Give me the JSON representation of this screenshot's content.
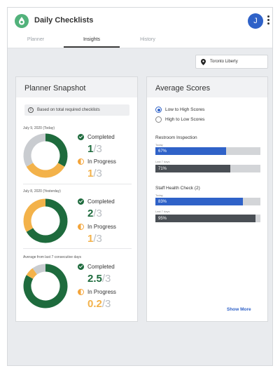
{
  "app": {
    "title": "Daily Checklists",
    "avatar_initial": "J"
  },
  "tabs": [
    {
      "label": "Planner",
      "active": false
    },
    {
      "label": "Insights",
      "active": true
    },
    {
      "label": "History",
      "active": false
    }
  ],
  "location": {
    "label": "Toronto Liberty",
    "icon": "location-pin-icon"
  },
  "planner": {
    "title": "Planner Snapshot",
    "info": "Based on total required checklists",
    "sections": [
      {
        "label": "July 9, 2020 (Today)",
        "completed_label": "Completed",
        "completed": "1",
        "completed_total": "/3",
        "progress_label": "In Progress",
        "progress": "1",
        "progress_total": "/3",
        "chart": {
          "completed": 1,
          "in_progress": 1,
          "total": 3
        }
      },
      {
        "label": "July 8, 2020 (Yesterday)",
        "completed_label": "Completed",
        "completed": "2",
        "completed_total": "/3",
        "progress_label": "In Progress",
        "progress": "1",
        "progress_total": "/3",
        "chart": {
          "completed": 2,
          "in_progress": 1,
          "total": 3
        }
      },
      {
        "label": "Average from last 7 consecutive days",
        "completed_label": "Completed",
        "completed": "2.5",
        "completed_total": "/3",
        "progress_label": "In Progress",
        "progress": "0.2",
        "progress_total": "/3",
        "chart": {
          "completed": 2.5,
          "in_progress": 0.2,
          "total": 3
        }
      }
    ]
  },
  "scores": {
    "title": "Average Scores",
    "sort_options": [
      {
        "label": "Low to High Scores",
        "selected": true
      },
      {
        "label": "High to Low Scores",
        "selected": false
      }
    ],
    "metrics": [
      {
        "title": "Restroom Inspection",
        "today_label": "Today",
        "today": "67%",
        "today_value": 67,
        "last_label": "Last 7 days",
        "last": "71%",
        "last_value": 71
      },
      {
        "title": "Staff Health Check (2)",
        "today_label": "Today",
        "today": "83%",
        "today_value": 83,
        "last_label": "Last 7 days",
        "last": "95%",
        "last_value": 95
      }
    ],
    "show_more": "Show More"
  },
  "colors": {
    "completed": "#1e6b3d",
    "in_progress": "#f3b24a",
    "remaining": "#c9ccd0",
    "accent": "#2f62c8",
    "dark_bar": "#4a4f55"
  }
}
